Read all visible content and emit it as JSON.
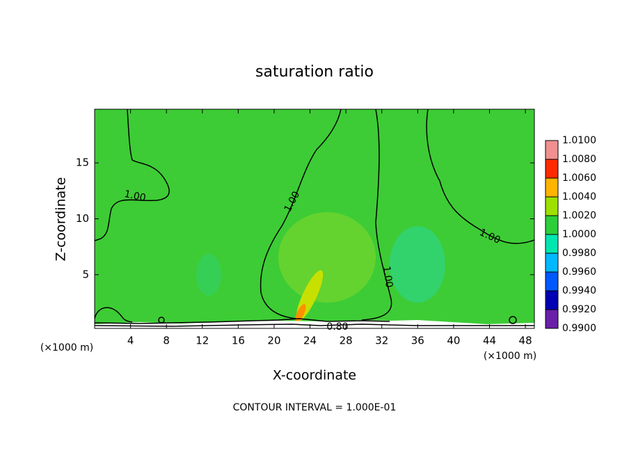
{
  "chart_data": {
    "type": "contour",
    "title": "saturation ratio",
    "x_label": "X-coordinate",
    "y_label": "Z-coordinate",
    "x_unit": "(×1000 m)",
    "y_unit": "(×1000 m)",
    "xlim": [
      0,
      49
    ],
    "xticks": [
      4,
      8,
      12,
      16,
      20,
      24,
      28,
      32,
      36,
      40,
      44,
      48
    ],
    "ylim": [
      0.2,
      19.8
    ],
    "yticks": [
      5,
      10,
      15
    ],
    "colorbar": {
      "ticks": [
        {
          "value": 0.99,
          "label": "0.9900"
        },
        {
          "value": 0.992,
          "label": "0.9920"
        },
        {
          "value": 0.994,
          "label": "0.9940"
        },
        {
          "value": 0.996,
          "label": "0.9960"
        },
        {
          "value": 0.998,
          "label": "0.9980"
        },
        {
          "value": 1.0,
          "label": "1.0000"
        },
        {
          "value": 1.002,
          "label": "1.0020"
        },
        {
          "value": 1.004,
          "label": "1.0040"
        },
        {
          "value": 1.006,
          "label": "1.0060"
        },
        {
          "value": 1.008,
          "label": "1.0080"
        },
        {
          "value": 1.01,
          "label": "1.0100"
        }
      ],
      "colors": [
        "#6a1fa8",
        "#0000b4",
        "#0058ff",
        "#00b8ff",
        "#00e6b0",
        "#2ccf3a",
        "#9ee000",
        "#ffb400",
        "#ff2a00",
        "#f09090"
      ]
    },
    "contour_labels": [
      "1.00",
      "1.00",
      "1.00",
      "1.00",
      "0.80"
    ],
    "footer": "CONTOUR INTERVAL = 1.000E-01"
  }
}
